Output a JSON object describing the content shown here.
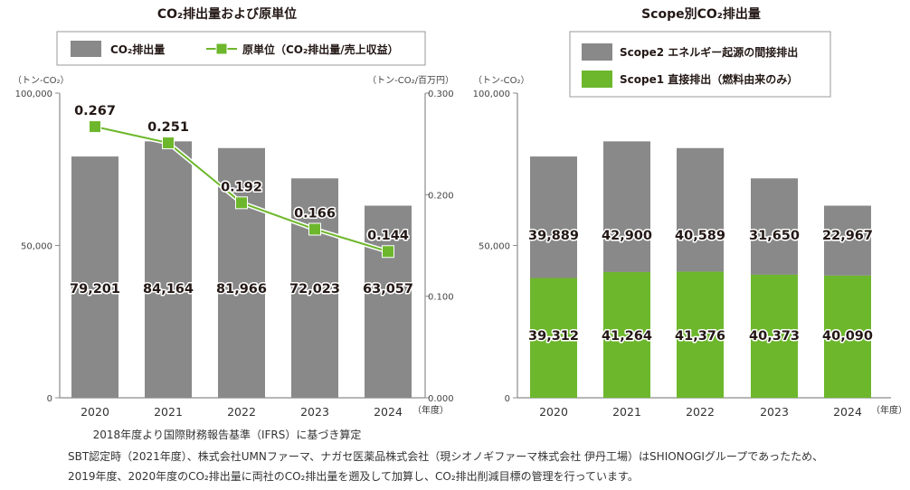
{
  "colors": {
    "gray": "#898989",
    "green": "#6db72c",
    "axis": "#8c8c8c"
  },
  "chart_data": [
    {
      "type": "bar+line",
      "title": "CO₂排出量および原単位",
      "legend": [
        "CO₂排出量",
        "原単位（CO₂排出量/売上収益）"
      ],
      "legend_placement": "top",
      "ylabel": "（トン-CO₂）",
      "y2label": "（トン-CO₂/百万円）",
      "categories": [
        "2020",
        "2021",
        "2022",
        "2023",
        "2024"
      ],
      "category_suffix": "（年度）",
      "ylim": [
        0,
        100000
      ],
      "y_ticks": [
        "100,000",
        "50,000",
        "0"
      ],
      "y2lim": [
        0,
        0.3
      ],
      "y2_ticks": [
        "0.300",
        "0.200",
        "0.100",
        "0.000"
      ],
      "series": [
        {
          "name": "CO₂排出量",
          "type": "bar",
          "values": [
            79201,
            84164,
            81966,
            72023,
            63057
          ],
          "labels": [
            "79,201",
            "84,164",
            "81,966",
            "72,023",
            "63,057"
          ]
        },
        {
          "name": "原単位（CO₂排出量/売上収益）",
          "type": "line",
          "axis": "right",
          "values": [
            0.267,
            0.251,
            0.192,
            0.166,
            0.144
          ],
          "labels": [
            "0.267",
            "0.251",
            "0.192",
            "0.166",
            "0.144"
          ]
        }
      ],
      "footnote": "2018年度より国際財務報告基準（IFRS）に基づき算定"
    },
    {
      "type": "stacked-bar",
      "title": "Scope別CO₂排出量",
      "legend": [
        "Scope2 エネルギー起源の間接排出",
        "Scope1 直接排出（燃料由来のみ）"
      ],
      "legend_placement": "top",
      "ylabel": "（トン-CO₂）",
      "categories": [
        "2020",
        "2021",
        "2022",
        "2023",
        "2024"
      ],
      "category_suffix": "（年度）",
      "ylim": [
        0,
        100000
      ],
      "y_ticks": [
        "100,000",
        "50,000",
        "0"
      ],
      "series": [
        {
          "name": "Scope1 直接排出（燃料由来のみ）",
          "values": [
            39312,
            41264,
            41376,
            40373,
            40090
          ],
          "labels": [
            "39,312",
            "41,264",
            "41,376",
            "40,373",
            "40,090"
          ]
        },
        {
          "name": "Scope2 エネルギー起源の間接排出",
          "values": [
            39889,
            42900,
            40589,
            31650,
            22967
          ],
          "labels": [
            "39,889",
            "42,900",
            "40,589",
            "31,650",
            "22,967"
          ]
        }
      ]
    }
  ],
  "notes": [
    "SBT認定時（2021年度）、株式会社UMNファーマ、ナガセ医薬品株式会社（現シオノギファーマ株式会社 伊丹工場）はSHIONOGIグループであったため、",
    "2019年度、2020年度のCO₂排出量に両社のCO₂排出量を遡及して加算し、CO₂排出削減目標の管理を行っています。"
  ]
}
